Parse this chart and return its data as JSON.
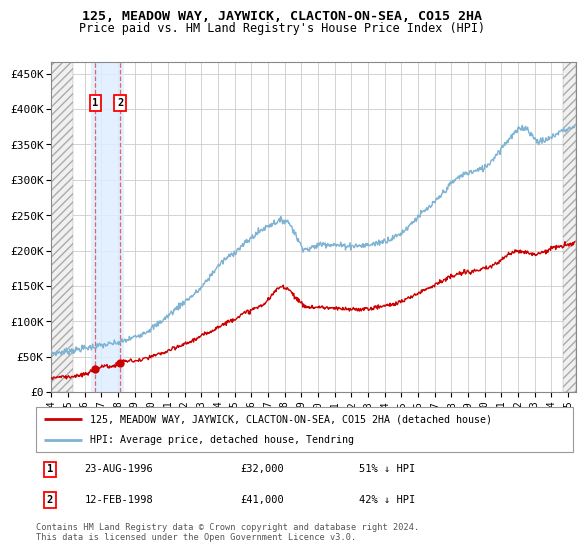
{
  "title": "125, MEADOW WAY, JAYWICK, CLACTON-ON-SEA, CO15 2HA",
  "subtitle": "Price paid vs. HM Land Registry's House Price Index (HPI)",
  "yticks": [
    0,
    50000,
    100000,
    150000,
    200000,
    250000,
    300000,
    350000,
    400000,
    450000
  ],
  "ytick_labels": [
    "£0",
    "£50K",
    "£100K",
    "£150K",
    "£200K",
    "£250K",
    "£300K",
    "£350K",
    "£400K",
    "£450K"
  ],
  "xmin": 1994.0,
  "xmax": 2025.5,
  "ymin": 0,
  "ymax": 467000,
  "sale1_x": 1996.64,
  "sale1_y": 32000,
  "sale1_label": "1",
  "sale1_date": "23-AUG-1996",
  "sale1_price": "£32,000",
  "sale1_hpi": "51% ↓ HPI",
  "sale2_x": 1998.12,
  "sale2_y": 41000,
  "sale2_label": "2",
  "sale2_date": "12-FEB-1998",
  "sale2_price": "£41,000",
  "sale2_hpi": "42% ↓ HPI",
  "hatch_left_xmax": 1995.3,
  "hatch_right_xmin": 2024.7,
  "line1_color": "#cc0000",
  "line2_color": "#7fb3d3",
  "background_color": "#ffffff",
  "plot_bg_color": "#ffffff",
  "highlight_bg_color": "#ddeeff",
  "grid_color": "#cccccc",
  "legend1_label": "125, MEADOW WAY, JAYWICK, CLACTON-ON-SEA, CO15 2HA (detached house)",
  "legend2_label": "HPI: Average price, detached house, Tendring",
  "footer": "Contains HM Land Registry data © Crown copyright and database right 2024.\nThis data is licensed under the Open Government Licence v3.0.",
  "xtick_years": [
    1994,
    1995,
    1996,
    1997,
    1998,
    1999,
    2000,
    2001,
    2002,
    2003,
    2004,
    2005,
    2006,
    2007,
    2008,
    2009,
    2010,
    2011,
    2012,
    2013,
    2014,
    2015,
    2016,
    2017,
    2018,
    2019,
    2020,
    2021,
    2022,
    2023,
    2024,
    2025
  ]
}
